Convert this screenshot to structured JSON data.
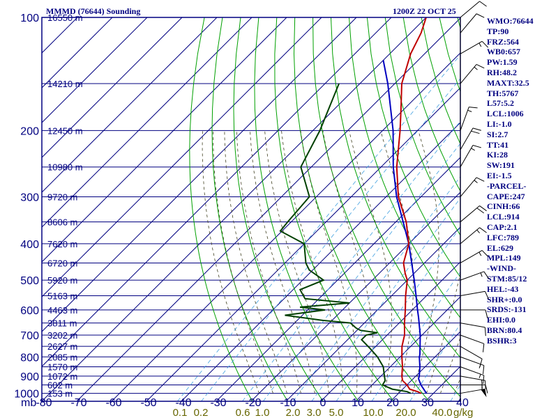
{
  "header": {
    "title": "MMMD (76644) Sounding",
    "time": "1200Z 22 OCT 25"
  },
  "indices": [
    "WMO:76644",
    "TP:90",
    "FRZ:564",
    "WB0:657",
    "PW:1.59",
    "RH:48.2",
    "MAXT:32.5",
    "TH:5767",
    "L57:5.2",
    "LCL:1006",
    "LI:-1.0",
    "SI:2.7",
    "TT:41",
    "KI:28",
    "SW:191",
    "EI:-1.5",
    "-PARCEL-",
    "CAPE:247",
    "CINH:66",
    "LCL:914",
    "CAP:2.1",
    "LFC:789",
    "EL:629",
    "MPL:149",
    "-WIND-",
    "STM:85/12",
    "HEL:-43",
    "SHR+:0.0",
    "SRDS:-131",
    "EHI:0.0",
    "BRN:80.4",
    "BSHR:3"
  ],
  "colors": {
    "background": "#ffffff",
    "grid": "#000080",
    "dry_adiabat": "#00a000",
    "moist_adiabat": "#404020",
    "mixing_ratio": "#40a0e0",
    "temperature": "#c00000",
    "dewpoint": "#004000",
    "parcel": "#0000c0",
    "wind_barb": "#000000"
  },
  "chart_data": {
    "type": "skew-t",
    "pressure_ticks": [
      "100",
      "200",
      "300",
      "400",
      "500",
      "600",
      "700",
      "800",
      "900",
      "1000"
    ],
    "height_labels": [
      {
        "p": 100,
        "label": "16550 m"
      },
      {
        "p": 150,
        "label": "14210 m"
      },
      {
        "p": 200,
        "label": "12450 m"
      },
      {
        "p": 250,
        "label": "10980 m"
      },
      {
        "p": 300,
        "label": "9720 m"
      },
      {
        "p": 350,
        "label": "8606 m"
      },
      {
        "p": 400,
        "label": "7620 m"
      },
      {
        "p": 450,
        "label": "6720 m"
      },
      {
        "p": 500,
        "label": "5920 m"
      },
      {
        "p": 550,
        "label": "5163 m"
      },
      {
        "p": 600,
        "label": "4463 m"
      },
      {
        "p": 650,
        "label": "3811 m"
      },
      {
        "p": 700,
        "label": "3202 m"
      },
      {
        "p": 750,
        "label": "2627 m"
      },
      {
        "p": 800,
        "label": "2085 m"
      },
      {
        "p": 850,
        "label": "1570 m"
      },
      {
        "p": 900,
        "label": "1072 m"
      },
      {
        "p": 950,
        "label": "602 m"
      },
      {
        "p": 1000,
        "label": "153 m"
      }
    ],
    "temp_ticks": [
      "-80",
      "-70",
      "-60",
      "-50",
      "-40",
      "-30",
      "-20",
      "-10",
      "0",
      "10",
      "20",
      "30",
      "40"
    ],
    "pressure_unit": "mb",
    "mixing_ratio_labels": [
      "0.1",
      "0.2",
      "0.6",
      "1.0",
      "2.0",
      "3.0",
      "5.0",
      "10.0",
      "20.0",
      "40.0"
    ],
    "mixing_ratio_unit": "g/kg",
    "temperature": [
      {
        "p": 1000,
        "t": 26.5
      },
      {
        "p": 990,
        "t": 25.0
      },
      {
        "p": 975,
        "t": 22.0
      },
      {
        "p": 950,
        "t": 20.0
      },
      {
        "p": 925,
        "t": 17.5
      },
      {
        "p": 900,
        "t": 16.0
      },
      {
        "p": 850,
        "t": 13.5
      },
      {
        "p": 800,
        "t": 10.5
      },
      {
        "p": 750,
        "t": 7.5
      },
      {
        "p": 700,
        "t": 5.0
      },
      {
        "p": 650,
        "t": 1.5
      },
      {
        "p": 600,
        "t": -2.0
      },
      {
        "p": 550,
        "t": -6.0
      },
      {
        "p": 500,
        "t": -10.0
      },
      {
        "p": 480,
        "t": -12.5
      },
      {
        "p": 450,
        "t": -16.0
      },
      {
        "p": 400,
        "t": -20.0
      },
      {
        "p": 350,
        "t": -27.0
      },
      {
        "p": 300,
        "t": -36.5
      },
      {
        "p": 250,
        "t": -45.5
      },
      {
        "p": 200,
        "t": -55.0
      },
      {
        "p": 175,
        "t": -61.0
      },
      {
        "p": 150,
        "t": -68.0
      },
      {
        "p": 125,
        "t": -74.0
      },
      {
        "p": 110,
        "t": -77.0
      },
      {
        "p": 100,
        "t": -80.0
      }
    ],
    "dewpoint": [
      {
        "p": 1000,
        "t": 23.5
      },
      {
        "p": 990,
        "t": 22.0
      },
      {
        "p": 975,
        "t": 17.0
      },
      {
        "p": 950,
        "t": 13.0
      },
      {
        "p": 925,
        "t": 12.5
      },
      {
        "p": 900,
        "t": 11.0
      },
      {
        "p": 850,
        "t": 8.0
      },
      {
        "p": 800,
        "t": 3.5
      },
      {
        "p": 760,
        "t": -1.0
      },
      {
        "p": 720,
        "t": -6.0
      },
      {
        "p": 700,
        "t": -6.0
      },
      {
        "p": 690,
        "t": -3.5
      },
      {
        "p": 680,
        "t": -9.0
      },
      {
        "p": 670,
        "t": -11.0
      },
      {
        "p": 650,
        "t": -14.0
      },
      {
        "p": 640,
        "t": -22.5
      },
      {
        "p": 620,
        "t": -35.0
      },
      {
        "p": 600,
        "t": -25.0
      },
      {
        "p": 590,
        "t": -33.0
      },
      {
        "p": 575,
        "t": -20.0
      },
      {
        "p": 560,
        "t": -34.0
      },
      {
        "p": 530,
        "t": -38.0
      },
      {
        "p": 500,
        "t": -34.0
      },
      {
        "p": 470,
        "t": -41.0
      },
      {
        "p": 450,
        "t": -44.0
      },
      {
        "p": 400,
        "t": -50.0
      },
      {
        "p": 370,
        "t": -60.5
      },
      {
        "p": 350,
        "t": -61.0
      },
      {
        "p": 300,
        "t": -62.0
      },
      {
        "p": 250,
        "t": -73.0
      },
      {
        "p": 200,
        "t": -78.0
      },
      {
        "p": 150,
        "t": -86.0
      }
    ],
    "parcel": [
      {
        "p": 1000,
        "t": 28.0
      },
      {
        "p": 950,
        "t": 24.0
      },
      {
        "p": 914,
        "t": 21.5
      },
      {
        "p": 900,
        "t": 21.0
      },
      {
        "p": 850,
        "t": 18.5
      },
      {
        "p": 800,
        "t": 15.5
      },
      {
        "p": 789,
        "t": 15.0
      },
      {
        "p": 700,
        "t": 9.5
      },
      {
        "p": 629,
        "t": 4.0
      },
      {
        "p": 600,
        "t": 1.5
      },
      {
        "p": 550,
        "t": -3.0
      },
      {
        "p": 500,
        "t": -8.0
      },
      {
        "p": 400,
        "t": -20.0
      },
      {
        "p": 300,
        "t": -37.0
      },
      {
        "p": 250,
        "t": -46.5
      },
      {
        "p": 200,
        "t": -57.0
      },
      {
        "p": 150,
        "t": -72.0
      },
      {
        "p": 130,
        "t": -80.0
      }
    ],
    "wind_barbs": [
      {
        "p": 1000,
        "dir": 80,
        "spd": 50
      },
      {
        "p": 950,
        "dir": 90,
        "spd": 15
      },
      {
        "p": 900,
        "dir": 100,
        "spd": 20
      },
      {
        "p": 850,
        "dir": 110,
        "spd": 15
      },
      {
        "p": 800,
        "dir": 110,
        "spd": 15
      },
      {
        "p": 750,
        "dir": 120,
        "spd": 10
      },
      {
        "p": 700,
        "dir": 110,
        "spd": 10
      },
      {
        "p": 650,
        "dir": 100,
        "spd": 10
      },
      {
        "p": 600,
        "dir": 90,
        "spd": 10
      },
      {
        "p": 550,
        "dir": 80,
        "spd": 10
      },
      {
        "p": 500,
        "dir": 70,
        "spd": 15
      },
      {
        "p": 450,
        "dir": 60,
        "spd": 15
      },
      {
        "p": 400,
        "dir": 50,
        "spd": 15
      },
      {
        "p": 350,
        "dir": 50,
        "spd": 20
      },
      {
        "p": 300,
        "dir": 40,
        "spd": 15
      },
      {
        "p": 250,
        "dir": 30,
        "spd": 15
      },
      {
        "p": 225,
        "dir": 30,
        "spd": 20
      },
      {
        "p": 200,
        "dir": 20,
        "spd": 15
      },
      {
        "p": 150,
        "dir": 40,
        "spd": 15
      },
      {
        "p": 125,
        "dir": 60,
        "spd": 15
      },
      {
        "p": 110,
        "dir": 40,
        "spd": 10
      },
      {
        "p": 100,
        "dir": 50,
        "spd": 10
      }
    ]
  }
}
